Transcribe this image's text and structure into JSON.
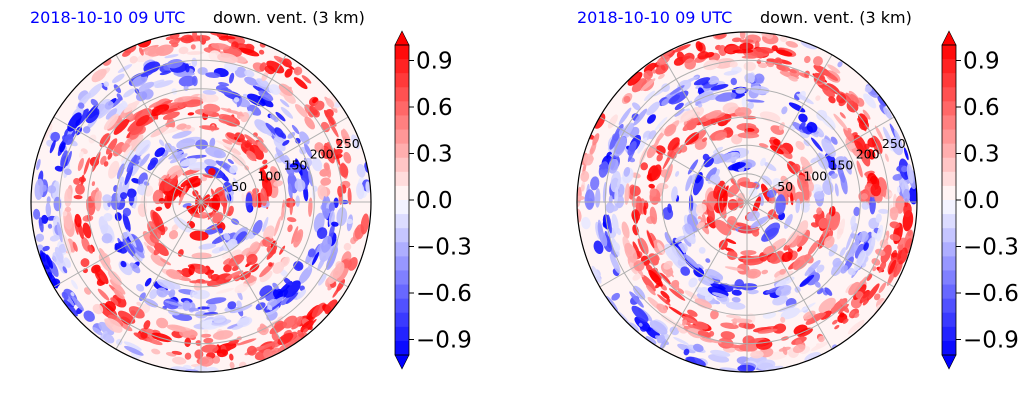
{
  "chart_data": [
    {
      "type": "heatmap",
      "projection": "polar",
      "title_left": "2018-10-10 09 UTC",
      "title_right": "down. vent. (3 km)",
      "radial_tick_labels": [
        "50",
        "100",
        "150",
        "200",
        "250"
      ],
      "radial_ticks": [
        50,
        100,
        150,
        200,
        250
      ],
      "rlim": [
        0,
        300
      ],
      "angular_grid_deg": 30,
      "grid": true,
      "colorbar": {
        "ticks": [
          "0.9",
          "0.6",
          "0.3",
          "0.0",
          "−0.3",
          "−0.6",
          "−0.9"
        ],
        "range": [
          -1.0,
          1.0
        ],
        "cmap": "bwr",
        "extend": "both"
      }
    },
    {
      "type": "heatmap",
      "projection": "polar",
      "title_left": "2018-10-10 09 UTC",
      "title_right": "down. vent. (3 km)",
      "radial_tick_labels": [
        "50",
        "100",
        "150",
        "200",
        "250"
      ],
      "radial_ticks": [
        50,
        100,
        150,
        200,
        250
      ],
      "rlim": [
        0,
        300
      ],
      "angular_grid_deg": 30,
      "grid": true,
      "colorbar": {
        "ticks": [
          "0.9",
          "0.6",
          "0.3",
          "0.0",
          "−0.3",
          "−0.6",
          "−0.9"
        ],
        "range": [
          -1.0,
          1.0
        ],
        "cmap": "bwr",
        "extend": "both"
      }
    }
  ]
}
